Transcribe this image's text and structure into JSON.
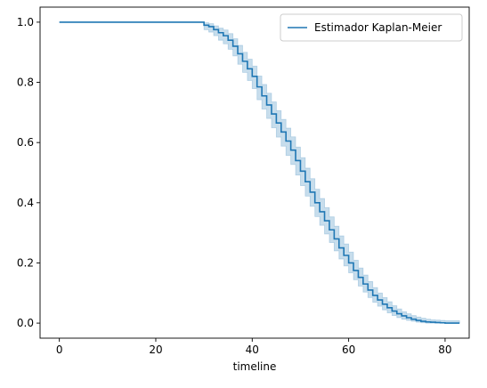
{
  "chart_data": {
    "type": "line",
    "subtype": "step-with-confidence-band",
    "title": "",
    "xlabel": "timeline",
    "ylabel": "",
    "xlim": [
      -4,
      85
    ],
    "ylim": [
      -0.05,
      1.05
    ],
    "xticks": [
      0,
      20,
      40,
      60,
      80
    ],
    "yticks": [
      0.0,
      0.2,
      0.4,
      0.6,
      0.8,
      1.0
    ],
    "xtick_labels": [
      "0",
      "20",
      "40",
      "60",
      "80"
    ],
    "ytick_labels": [
      "0.0",
      "0.2",
      "0.4",
      "0.6",
      "0.8",
      "1.0"
    ],
    "grid": false,
    "legend_position": "top-right",
    "colors": {
      "line": "#1f77b4",
      "band": "#1f77b4"
    },
    "series": [
      {
        "name": "Estimador Kaplan-Meier",
        "x": [
          0,
          30,
          31,
          32,
          33,
          34,
          35,
          36,
          37,
          38,
          39,
          40,
          41,
          42,
          43,
          44,
          45,
          46,
          47,
          48,
          49,
          50,
          51,
          52,
          53,
          54,
          55,
          56,
          57,
          58,
          59,
          60,
          61,
          62,
          63,
          64,
          65,
          66,
          67,
          68,
          69,
          70,
          71,
          72,
          73,
          74,
          75,
          76,
          77,
          78,
          79,
          80,
          81,
          82,
          83
        ],
        "y": [
          1.0,
          0.99,
          0.985,
          0.975,
          0.965,
          0.955,
          0.94,
          0.92,
          0.895,
          0.87,
          0.845,
          0.82,
          0.785,
          0.755,
          0.725,
          0.695,
          0.665,
          0.635,
          0.605,
          0.575,
          0.54,
          0.505,
          0.47,
          0.435,
          0.4,
          0.37,
          0.34,
          0.31,
          0.28,
          0.25,
          0.225,
          0.2,
          0.175,
          0.152,
          0.13,
          0.11,
          0.092,
          0.077,
          0.063,
          0.051,
          0.04,
          0.031,
          0.024,
          0.018,
          0.013,
          0.009,
          0.006,
          0.004,
          0.003,
          0.002,
          0.001,
          0.0,
          0.0,
          0.0,
          0.0
        ],
        "lower": [
          1.0,
          0.975,
          0.967,
          0.955,
          0.94,
          0.928,
          0.91,
          0.888,
          0.86,
          0.833,
          0.806,
          0.779,
          0.742,
          0.711,
          0.68,
          0.649,
          0.618,
          0.588,
          0.557,
          0.527,
          0.492,
          0.457,
          0.422,
          0.388,
          0.354,
          0.325,
          0.296,
          0.268,
          0.24,
          0.213,
          0.19,
          0.167,
          0.144,
          0.123,
          0.103,
          0.085,
          0.069,
          0.056,
          0.044,
          0.034,
          0.025,
          0.018,
          0.013,
          0.009,
          0.006,
          0.003,
          0.001,
          0.0,
          0.0,
          0.0,
          0.0,
          0.0,
          0.0,
          0.0,
          0.0
        ],
        "upper": [
          1.0,
          0.998,
          0.995,
          0.988,
          0.98,
          0.974,
          0.962,
          0.945,
          0.923,
          0.9,
          0.877,
          0.854,
          0.821,
          0.793,
          0.764,
          0.735,
          0.706,
          0.677,
          0.648,
          0.619,
          0.585,
          0.55,
          0.515,
          0.48,
          0.445,
          0.414,
          0.384,
          0.353,
          0.322,
          0.29,
          0.263,
          0.236,
          0.209,
          0.183,
          0.16,
          0.138,
          0.118,
          0.1,
          0.085,
          0.071,
          0.058,
          0.047,
          0.038,
          0.031,
          0.025,
          0.02,
          0.016,
          0.013,
          0.011,
          0.01,
          0.009,
          0.008,
          0.008,
          0.008,
          0.008
        ]
      }
    ]
  }
}
